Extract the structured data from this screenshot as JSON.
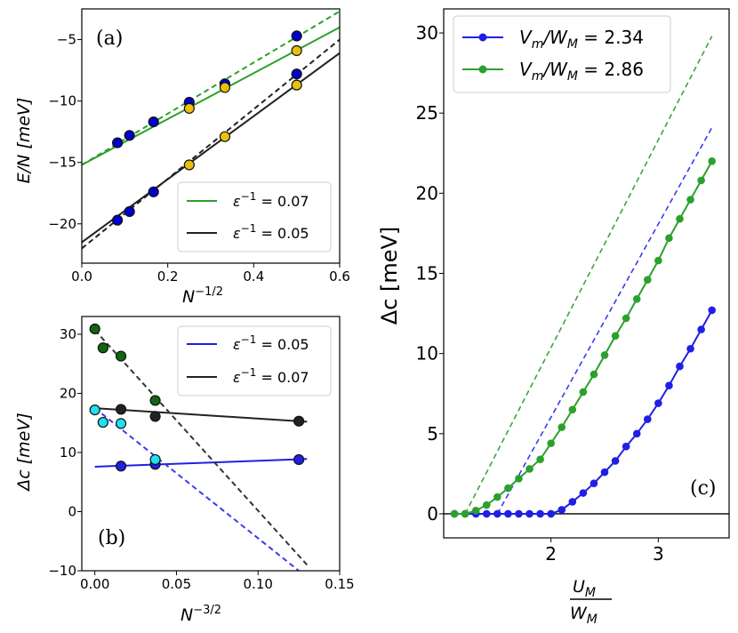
{
  "colors": {
    "green": "#2ca02c",
    "black": "#222222",
    "blue": "#1f1fe6",
    "dark_blue": "#0000cc",
    "gold": "#e8c20a",
    "dark_green": "#116611",
    "cyan": "#1ee1f0",
    "dash_blue": "#3a3af0",
    "dash_green": "#3aa63a",
    "dash_black": "#333333"
  },
  "chart_data": [
    {
      "id": "a",
      "type": "scatter",
      "panel_label": "(a)",
      "xlabel": "N",
      "xlabel_sup": "−1/2",
      "ylabel": "E/N [meV]",
      "xlim": [
        0.0,
        0.6
      ],
      "ylim": [
        -23.2,
        -2.5
      ],
      "xticks": [
        0.0,
        0.2,
        0.4,
        0.6
      ],
      "xtick_labels": [
        "0.0",
        "0.2",
        "0.4",
        "0.6"
      ],
      "yticks": [
        -20,
        -15,
        -10,
        -5
      ],
      "ytick_labels": [
        "−20",
        "−15",
        "−10",
        "−5"
      ],
      "legend": {
        "position": "lower-right",
        "entries": [
          {
            "label": "ε",
            "sup": "−1",
            "rest": " = 0.07",
            "color": "green"
          },
          {
            "label": "ε",
            "sup": "−1",
            "rest": " = 0.05",
            "color": "black"
          }
        ]
      },
      "lines": [
        {
          "color": "green",
          "dash": false,
          "x": [
            0.0,
            0.6
          ],
          "y": [
            -15.2,
            -4.0
          ]
        },
        {
          "color": "green",
          "dash": true,
          "x": [
            0.0,
            0.6
          ],
          "y": [
            -15.2,
            -2.7
          ]
        },
        {
          "color": "black",
          "dash": false,
          "x": [
            0.0,
            0.6
          ],
          "y": [
            -21.5,
            -6.1
          ]
        },
        {
          "color": "black",
          "dash": true,
          "x": [
            0.0,
            0.6
          ],
          "y": [
            -22.0,
            -5.0
          ]
        }
      ],
      "series": [
        {
          "name": "green-blue",
          "fill": "dark_blue",
          "x": [
            0.083,
            0.111,
            0.167,
            0.25,
            0.333,
            0.5
          ],
          "y": [
            -13.4,
            -12.8,
            -11.7,
            -10.1,
            -8.6,
            -4.7
          ]
        },
        {
          "name": "green-gold",
          "fill": "gold",
          "x": [
            0.25,
            0.333,
            0.5
          ],
          "y": [
            -10.6,
            -8.9,
            -5.9
          ]
        },
        {
          "name": "black-blue",
          "fill": "dark_blue",
          "x": [
            0.083,
            0.111,
            0.167,
            0.5
          ],
          "y": [
            -19.7,
            -19.0,
            -17.4,
            -7.8
          ]
        },
        {
          "name": "black-gold",
          "fill": "gold",
          "x": [
            0.25,
            0.333,
            0.5
          ],
          "y": [
            -15.2,
            -12.9,
            -8.7
          ]
        }
      ]
    },
    {
      "id": "b",
      "type": "scatter",
      "panel_label": "(b)",
      "xlabel": "N",
      "xlabel_sup": "−3/2",
      "ylabel": "Δc [meV]",
      "xlim": [
        -0.008,
        0.15
      ],
      "ylim": [
        -10,
        33
      ],
      "xticks": [
        0.0,
        0.05,
        0.1,
        0.15
      ],
      "xtick_labels": [
        "0.00",
        "0.05",
        "0.10",
        "0.15"
      ],
      "yticks": [
        -10,
        0,
        10,
        20,
        30
      ],
      "ytick_labels": [
        "−10",
        "0",
        "10",
        "20",
        "30"
      ],
      "legend": {
        "position": "upper-right",
        "entries": [
          {
            "label": "ε",
            "sup": "−1",
            "rest": " = 0.05",
            "color": "blue"
          },
          {
            "label": "ε",
            "sup": "−1",
            "rest": " = 0.07",
            "color": "black"
          }
        ]
      },
      "lines": [
        {
          "color": "blue",
          "dash": false,
          "x": [
            0.0,
            0.13
          ],
          "y": [
            7.6,
            8.9
          ]
        },
        {
          "color": "black",
          "dash": false,
          "x": [
            0.0,
            0.13
          ],
          "y": [
            17.5,
            15.2
          ]
        },
        {
          "color": "dash_blue",
          "dash": true,
          "x": [
            0.0,
            0.125
          ],
          "y": [
            17.5,
            -10.0
          ]
        },
        {
          "color": "dash_black",
          "dash": true,
          "x": [
            0.0,
            0.13
          ],
          "y": [
            30.7,
            -9.0
          ]
        }
      ],
      "series": [
        {
          "name": "blue-solid",
          "fill": "blue",
          "x": [
            0.016,
            0.037,
            0.125
          ],
          "y": [
            7.7,
            8.0,
            8.8
          ]
        },
        {
          "name": "blue-dash",
          "fill": "cyan",
          "x": [
            0.0,
            0.005,
            0.016,
            0.037
          ],
          "y": [
            17.2,
            15.1,
            14.9,
            8.8
          ]
        },
        {
          "name": "black-solid",
          "fill": "black",
          "x": [
            0.016,
            0.037,
            0.125
          ],
          "y": [
            17.3,
            16.1,
            15.3
          ]
        },
        {
          "name": "black-dash",
          "fill": "dark_green",
          "x": [
            0.0,
            0.005,
            0.016,
            0.037
          ],
          "y": [
            30.9,
            27.7,
            26.3,
            18.8
          ]
        }
      ]
    },
    {
      "id": "c",
      "type": "line",
      "panel_label": "(c)",
      "xlabel_num": "U",
      "xlabel_num_sub": "M",
      "xlabel_den": "W",
      "xlabel_den_sub": "M",
      "ylabel": "Δc [meV]",
      "xlim": [
        1.0,
        3.66
      ],
      "ylim": [
        -1.5,
        31.5
      ],
      "xticks": [
        2,
        3
      ],
      "xtick_labels": [
        "2",
        "3"
      ],
      "yticks": [
        0,
        5,
        10,
        15,
        20,
        25,
        30
      ],
      "ytick_labels": [
        "0",
        "5",
        "10",
        "15",
        "20",
        "25",
        "30"
      ],
      "legend": {
        "position": "upper-left",
        "entries": [
          {
            "label": "V",
            "sub1": "m",
            "mid": "/W",
            "sub2": "M",
            "rest": " = 2.34",
            "color": "blue"
          },
          {
            "label": "V",
            "sub1": "m",
            "mid": "/W",
            "sub2": "M",
            "rest": " = 2.86",
            "color": "green"
          }
        ]
      },
      "series": [
        {
          "name": "Vm/WM = 2.34",
          "color": "blue",
          "x": [
            1.1,
            1.2,
            1.3,
            1.4,
            1.5,
            1.6,
            1.7,
            1.8,
            1.9,
            2.0,
            2.1,
            2.2,
            2.3,
            2.4,
            2.5,
            2.6,
            2.7,
            2.8,
            2.9,
            3.0,
            3.1,
            3.2,
            3.3,
            3.4,
            3.5
          ],
          "y": [
            0,
            0,
            0,
            0,
            0,
            0,
            0,
            0,
            0,
            0,
            0.25,
            0.75,
            1.3,
            1.9,
            2.6,
            3.3,
            4.2,
            5.0,
            5.9,
            6.9,
            8.0,
            9.2,
            10.3,
            11.5,
            12.7
          ],
          "dash_x": [
            1.5,
            3.5
          ],
          "dash_y": [
            0,
            24.1
          ]
        },
        {
          "name": "Vm/WM = 2.86",
          "color": "green",
          "x": [
            1.1,
            1.2,
            1.3,
            1.4,
            1.5,
            1.6,
            1.7,
            1.8,
            1.9,
            2.0,
            2.1,
            2.2,
            2.3,
            2.4,
            2.5,
            2.6,
            2.7,
            2.8,
            2.9,
            3.0,
            3.1,
            3.2,
            3.3,
            3.4,
            3.5
          ],
          "y": [
            0,
            0,
            0.2,
            0.55,
            1.05,
            1.6,
            2.2,
            2.8,
            3.4,
            4.4,
            5.4,
            6.5,
            7.6,
            8.7,
            9.9,
            11.1,
            12.2,
            13.4,
            14.6,
            15.8,
            17.2,
            18.4,
            19.6,
            20.8,
            22.0
          ],
          "dash_x": [
            1.2,
            3.5
          ],
          "dash_y": [
            0,
            29.8
          ]
        }
      ]
    }
  ]
}
